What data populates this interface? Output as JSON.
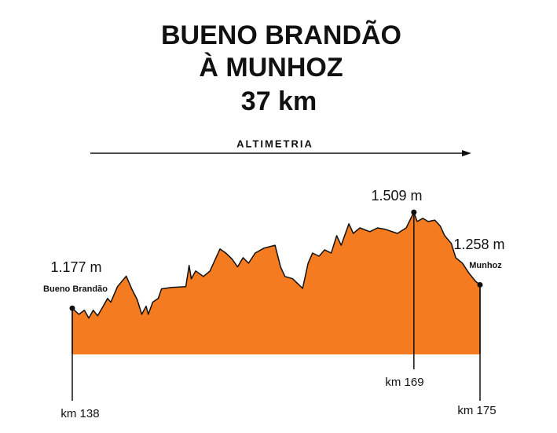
{
  "chart_data": {
    "type": "area",
    "title": [
      "BUENO BRANDÃO",
      "À MUNHOZ",
      "37 km"
    ],
    "x_axis_label": "ALTIMETRIA",
    "color": "#f47b20",
    "xlim": [
      138,
      175
    ],
    "ylim": [
      1020,
      1580
    ],
    "x": [
      138,
      138.6,
      139.1,
      139.5,
      139.9,
      140.3,
      140.8,
      141.2,
      141.5,
      142.1,
      142.9,
      143.4,
      143.9,
      144.3,
      144.7,
      144.9,
      145.3,
      145.8,
      146.1,
      147.0,
      148.3,
      148.6,
      148.8,
      149.2,
      149.9,
      150.5,
      151.4,
      151.9,
      152.5,
      153.0,
      153.5,
      154.0,
      154.6,
      155.4,
      156.4,
      156.9,
      157.3,
      158.0,
      158.9,
      159.4,
      159.8,
      160.4,
      160.9,
      161.5,
      162.0,
      162.4,
      163.1,
      163.5,
      164.1,
      165.0,
      165.7,
      166.4,
      167.5,
      168.3,
      169,
      169.3,
      169.8,
      170.3,
      170.9,
      171.4,
      171.8,
      172.4,
      172.8,
      173.4,
      174.0,
      174.6,
      175
    ],
    "values": [
      1177,
      1156,
      1170,
      1143,
      1170,
      1151,
      1184,
      1211,
      1198,
      1252,
      1288,
      1244,
      1206,
      1156,
      1184,
      1156,
      1198,
      1211,
      1244,
      1249,
      1252,
      1325,
      1279,
      1306,
      1287,
      1306,
      1382,
      1369,
      1347,
      1320,
      1352,
      1333,
      1368,
      1385,
      1395,
      1320,
      1287,
      1279,
      1246,
      1333,
      1368,
      1357,
      1379,
      1368,
      1428,
      1395,
      1469,
      1436,
      1455,
      1442,
      1455,
      1450,
      1436,
      1455,
      1509,
      1477,
      1488,
      1477,
      1482,
      1461,
      1428,
      1401,
      1352,
      1333,
      1298,
      1270,
      1258
    ],
    "markers": [
      {
        "elevation_label": "1.177 m",
        "place": "Bueno Brandão",
        "km_label": "km 138"
      },
      {
        "elevation_label": "1.509 m",
        "km_label": "km 169"
      },
      {
        "elevation_label": "1.258 m",
        "place": "Munhoz",
        "km_label": "km 175"
      }
    ]
  }
}
